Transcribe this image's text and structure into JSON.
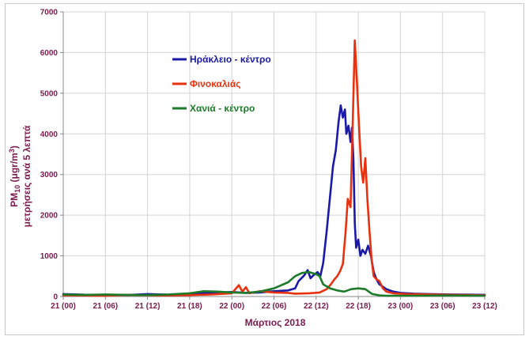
{
  "chart_data": {
    "type": "line",
    "xlabel": "Μάρτιος 2018",
    "ylabel_line1": "PM",
    "ylabel_sub": "10",
    "ylabel_unit": " (μgr/m",
    "ylabel_sup": "3",
    "ylabel_close": ")",
    "ylabel_line2": "μετρήσεις ανά 5 λεπτά",
    "ylim": [
      0,
      7000
    ],
    "xlim": [
      0,
      60
    ],
    "y_ticks": [
      "0",
      "1000",
      "2000",
      "3000",
      "4000",
      "5000",
      "6000",
      "7000"
    ],
    "x_ticks": [
      "21 (00)",
      "21 (06)",
      "21 (12)",
      "21 (18)",
      "22 (00)",
      "22 (06)",
      "22 (12)",
      "22 (18)",
      "23 (00)",
      "23 (06)",
      "23 (12)"
    ],
    "grid": true,
    "legend_placement": "upper-left-center",
    "series": [
      {
        "name": "Ηράκλειο - κέντρο",
        "color": "#1a1aa8",
        "points": [
          [
            0,
            60
          ],
          [
            3,
            45
          ],
          [
            6,
            40
          ],
          [
            9,
            35
          ],
          [
            12,
            60
          ],
          [
            15,
            45
          ],
          [
            18,
            70
          ],
          [
            21,
            90
          ],
          [
            24,
            110
          ],
          [
            26,
            90
          ],
          [
            28,
            100
          ],
          [
            30,
            130
          ],
          [
            32,
            150
          ],
          [
            33,
            200
          ],
          [
            33.5,
            380
          ],
          [
            34.3,
            520
          ],
          [
            34.8,
            650
          ],
          [
            35.2,
            450
          ],
          [
            35.6,
            520
          ],
          [
            36.2,
            600
          ],
          [
            36.6,
            500
          ],
          [
            37,
            820
          ],
          [
            37.5,
            1600
          ],
          [
            38,
            2500
          ],
          [
            38.4,
            3200
          ],
          [
            38.8,
            3600
          ],
          [
            39.2,
            4300
          ],
          [
            39.5,
            4700
          ],
          [
            39.8,
            4400
          ],
          [
            40.1,
            4600
          ],
          [
            40.3,
            4000
          ],
          [
            40.6,
            4200
          ],
          [
            40.9,
            3800
          ],
          [
            41.1,
            4150
          ],
          [
            41.3,
            3400
          ],
          [
            41.5,
            1800
          ],
          [
            41.7,
            1200
          ],
          [
            42,
            1400
          ],
          [
            42.3,
            1000
          ],
          [
            42.6,
            1150
          ],
          [
            43,
            1050
          ],
          [
            43.4,
            1250
          ],
          [
            43.8,
            1000
          ],
          [
            44.2,
            600
          ],
          [
            44.6,
            420
          ],
          [
            45,
            300
          ],
          [
            46,
            180
          ],
          [
            47,
            120
          ],
          [
            48,
            90
          ],
          [
            50,
            70
          ],
          [
            52,
            60
          ],
          [
            55,
            50
          ],
          [
            58,
            45
          ],
          [
            60,
            40
          ]
        ]
      },
      {
        "name": "Φινοκαλιάς",
        "color": "#e8310e",
        "points": [
          [
            0,
            30
          ],
          [
            3,
            25
          ],
          [
            6,
            20
          ],
          [
            9,
            40
          ],
          [
            12,
            30
          ],
          [
            15,
            25
          ],
          [
            18,
            35
          ],
          [
            21,
            50
          ],
          [
            24,
            80
          ],
          [
            25,
            280
          ],
          [
            25.5,
            120
          ],
          [
            26,
            230
          ],
          [
            26.5,
            80
          ],
          [
            28,
            130
          ],
          [
            30,
            100
          ],
          [
            32,
            90
          ],
          [
            33,
            70
          ],
          [
            35,
            80
          ],
          [
            36.5,
            100
          ],
          [
            37.5,
            180
          ],
          [
            38,
            280
          ],
          [
            38.6,
            420
          ],
          [
            39,
            500
          ],
          [
            39.4,
            620
          ],
          [
            39.8,
            800
          ],
          [
            40.2,
            1600
          ],
          [
            40.5,
            2400
          ],
          [
            40.9,
            2200
          ],
          [
            41.2,
            4200
          ],
          [
            41.5,
            6300
          ],
          [
            41.8,
            5300
          ],
          [
            42.1,
            4200
          ],
          [
            42.4,
            3200
          ],
          [
            42.7,
            2800
          ],
          [
            43,
            3400
          ],
          [
            43.3,
            2400
          ],
          [
            43.6,
            1600
          ],
          [
            43.9,
            900
          ],
          [
            44.2,
            500
          ],
          [
            44.6,
            420
          ],
          [
            45,
            380
          ],
          [
            45.5,
            200
          ],
          [
            46,
            120
          ],
          [
            47,
            80
          ],
          [
            49,
            60
          ],
          [
            52,
            50
          ],
          [
            55,
            40
          ],
          [
            58,
            35
          ],
          [
            60,
            30
          ]
        ]
      },
      {
        "name": "Χανιά - κέντρο",
        "color": "#1b7b28",
        "points": [
          [
            0,
            50
          ],
          [
            3,
            40
          ],
          [
            6,
            50
          ],
          [
            9,
            40
          ],
          [
            12,
            35
          ],
          [
            15,
            50
          ],
          [
            18,
            80
          ],
          [
            20,
            130
          ],
          [
            22,
            120
          ],
          [
            24,
            100
          ],
          [
            26,
            90
          ],
          [
            28,
            120
          ],
          [
            30,
            200
          ],
          [
            32,
            350
          ],
          [
            33,
            500
          ],
          [
            34,
            580
          ],
          [
            35,
            600
          ],
          [
            36,
            550
          ],
          [
            36.5,
            500
          ],
          [
            37,
            300
          ],
          [
            38,
            200
          ],
          [
            39,
            150
          ],
          [
            40,
            120
          ],
          [
            41,
            180
          ],
          [
            42,
            200
          ],
          [
            43,
            180
          ],
          [
            43.5,
            120
          ],
          [
            44,
            60
          ],
          [
            45,
            30
          ],
          [
            46,
            20
          ],
          [
            50,
            20
          ],
          [
            55,
            25
          ],
          [
            60,
            20
          ]
        ]
      }
    ]
  }
}
